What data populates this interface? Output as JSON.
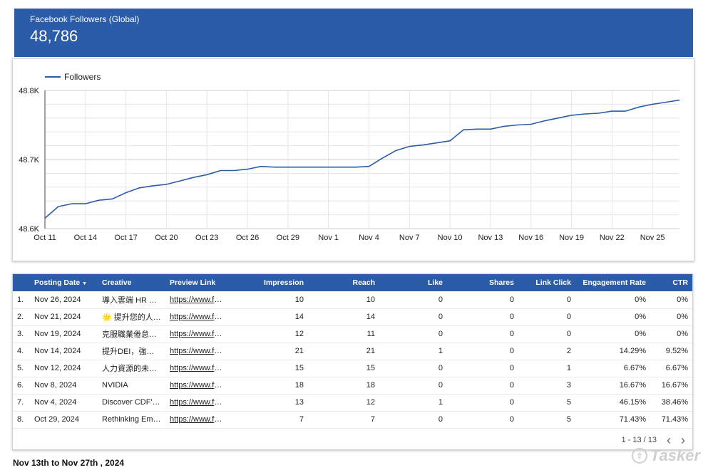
{
  "scorecard": {
    "label": "Facebook Followers (Global)",
    "value": "48,786"
  },
  "chart_data": {
    "type": "line",
    "title": "",
    "xlabel": "",
    "ylabel": "",
    "legend": {
      "label": "Followers",
      "position": "top-left"
    },
    "color": "#2a5caa",
    "ylim": [
      48600,
      48800
    ],
    "y_ticks": [
      48600,
      48700,
      48800
    ],
    "y_tick_labels": [
      "48.6K",
      "48.7K",
      "48.8K"
    ],
    "x_tick_labels": [
      "Oct 11",
      "Oct 14",
      "Oct 17",
      "Oct 20",
      "Oct 23",
      "Oct 26",
      "Oct 29",
      "Nov 1",
      "Nov 4",
      "Nov 7",
      "Nov 10",
      "Nov 13",
      "Nov 16",
      "Nov 19",
      "Nov 22",
      "Nov 25"
    ],
    "grid": true,
    "x": [
      "Oct 11",
      "Oct 12",
      "Oct 13",
      "Oct 14",
      "Oct 15",
      "Oct 16",
      "Oct 17",
      "Oct 18",
      "Oct 19",
      "Oct 20",
      "Oct 21",
      "Oct 22",
      "Oct 23",
      "Oct 24",
      "Oct 25",
      "Oct 26",
      "Oct 27",
      "Oct 28",
      "Oct 29",
      "Oct 30",
      "Oct 31",
      "Nov 1",
      "Nov 2",
      "Nov 3",
      "Nov 4",
      "Nov 5",
      "Nov 6",
      "Nov 7",
      "Nov 8",
      "Nov 9",
      "Nov 10",
      "Nov 11",
      "Nov 12",
      "Nov 13",
      "Nov 14",
      "Nov 15",
      "Nov 16",
      "Nov 17",
      "Nov 18",
      "Nov 19",
      "Nov 20",
      "Nov 21",
      "Nov 22",
      "Nov 23",
      "Nov 24",
      "Nov 25",
      "Nov 26",
      "Nov 27"
    ],
    "series": [
      {
        "name": "Followers",
        "values": [
          48615,
          48632,
          48636,
          48636,
          48641,
          48643,
          48652,
          48659,
          48662,
          48664,
          48669,
          48674,
          48678,
          48684,
          48684,
          48686,
          48690,
          48689,
          48689,
          48689,
          48689,
          48689,
          48689,
          48689,
          48690,
          48702,
          48713,
          48719,
          48721,
          48724,
          48727,
          48743,
          48744,
          48744,
          48748,
          48750,
          48751,
          48756,
          48760,
          48764,
          48766,
          48767,
          48770,
          48770,
          48776,
          48780,
          48783,
          48786
        ]
      }
    ]
  },
  "table": {
    "columns": [
      "Posting Date",
      "Creative",
      "Preview Link",
      "Impression",
      "Reach",
      "Like",
      "Shares",
      "Link Click",
      "Engagement Rate",
      "CTR"
    ],
    "sort_indicator": "▼",
    "rows": [
      {
        "n": "1.",
        "date": "Nov 26, 2024",
        "creative": "導入雲端 HR 系統：為何 HR 需要 SaaS",
        "link": "https://www.facebook.com/",
        "impression": "10",
        "reach": "10",
        "like": "0",
        "shares": "0",
        "click": "0",
        "er": "0%",
        "ctr": "0%"
      },
      {
        "n": "2.",
        "date": "Nov 21, 2024",
        "creative": "🌟 提升您的人才管理",
        "link": "https://www.facebook.com/",
        "impression": "14",
        "reach": "14",
        "like": "0",
        "shares": "0",
        "click": "0",
        "er": "0%",
        "ctr": "0%"
      },
      {
        "n": "3.",
        "date": "Nov 19, 2024",
        "creative": "克服職業倦怠，打造健康職場",
        "link": "https://www.facebook.com/",
        "impression": "12",
        "reach": "11",
        "like": "0",
        "shares": "0",
        "click": "0",
        "er": "0%",
        "ctr": "0%"
      },
      {
        "n": "4.",
        "date": "Nov 14, 2024",
        "creative": "提升DEI，強化企業文化",
        "link": "https://www.facebook.com/",
        "impression": "21",
        "reach": "21",
        "like": "1",
        "shares": "0",
        "click": "2",
        "er": "14.29%",
        "ctr": "9.52%"
      },
      {
        "n": "5.",
        "date": "Nov 12, 2024",
        "creative": "人力資源的未來趨勢",
        "link": "https://www.facebook.com/",
        "impression": "15",
        "reach": "15",
        "like": "0",
        "shares": "0",
        "click": "1",
        "er": "6.67%",
        "ctr": "6.67%"
      },
      {
        "n": "6.",
        "date": "Nov 8, 2024",
        "creative": "NVIDIA",
        "link": "https://www.facebook.com/",
        "impression": "18",
        "reach": "18",
        "like": "0",
        "shares": "0",
        "click": "3",
        "er": "16.67%",
        "ctr": "16.67%"
      },
      {
        "n": "7.",
        "date": "Nov 4, 2024",
        "creative": "Discover CDF's HR Solutions",
        "link": "https://www.facebook.com/",
        "impression": "13",
        "reach": "12",
        "like": "1",
        "shares": "0",
        "click": "5",
        "er": "46.15%",
        "ctr": "38.46%"
      },
      {
        "n": "8.",
        "date": "Oct 29, 2024",
        "creative": "Rethinking Employee Experience",
        "link": "https://www.facebook.com/",
        "impression": "7",
        "reach": "7",
        "like": "0",
        "shares": "0",
        "click": "5",
        "er": "71.43%",
        "ctr": "71.43%"
      }
    ],
    "pagination": {
      "label": "1 - 13 / 13",
      "prev": "‹",
      "next": "›"
    }
  },
  "footer": {
    "date_range": "Nov 13th to Nov 27th , 2024"
  },
  "watermark": {
    "text": "Tasker",
    "icon": "tasker-logo-icon"
  }
}
